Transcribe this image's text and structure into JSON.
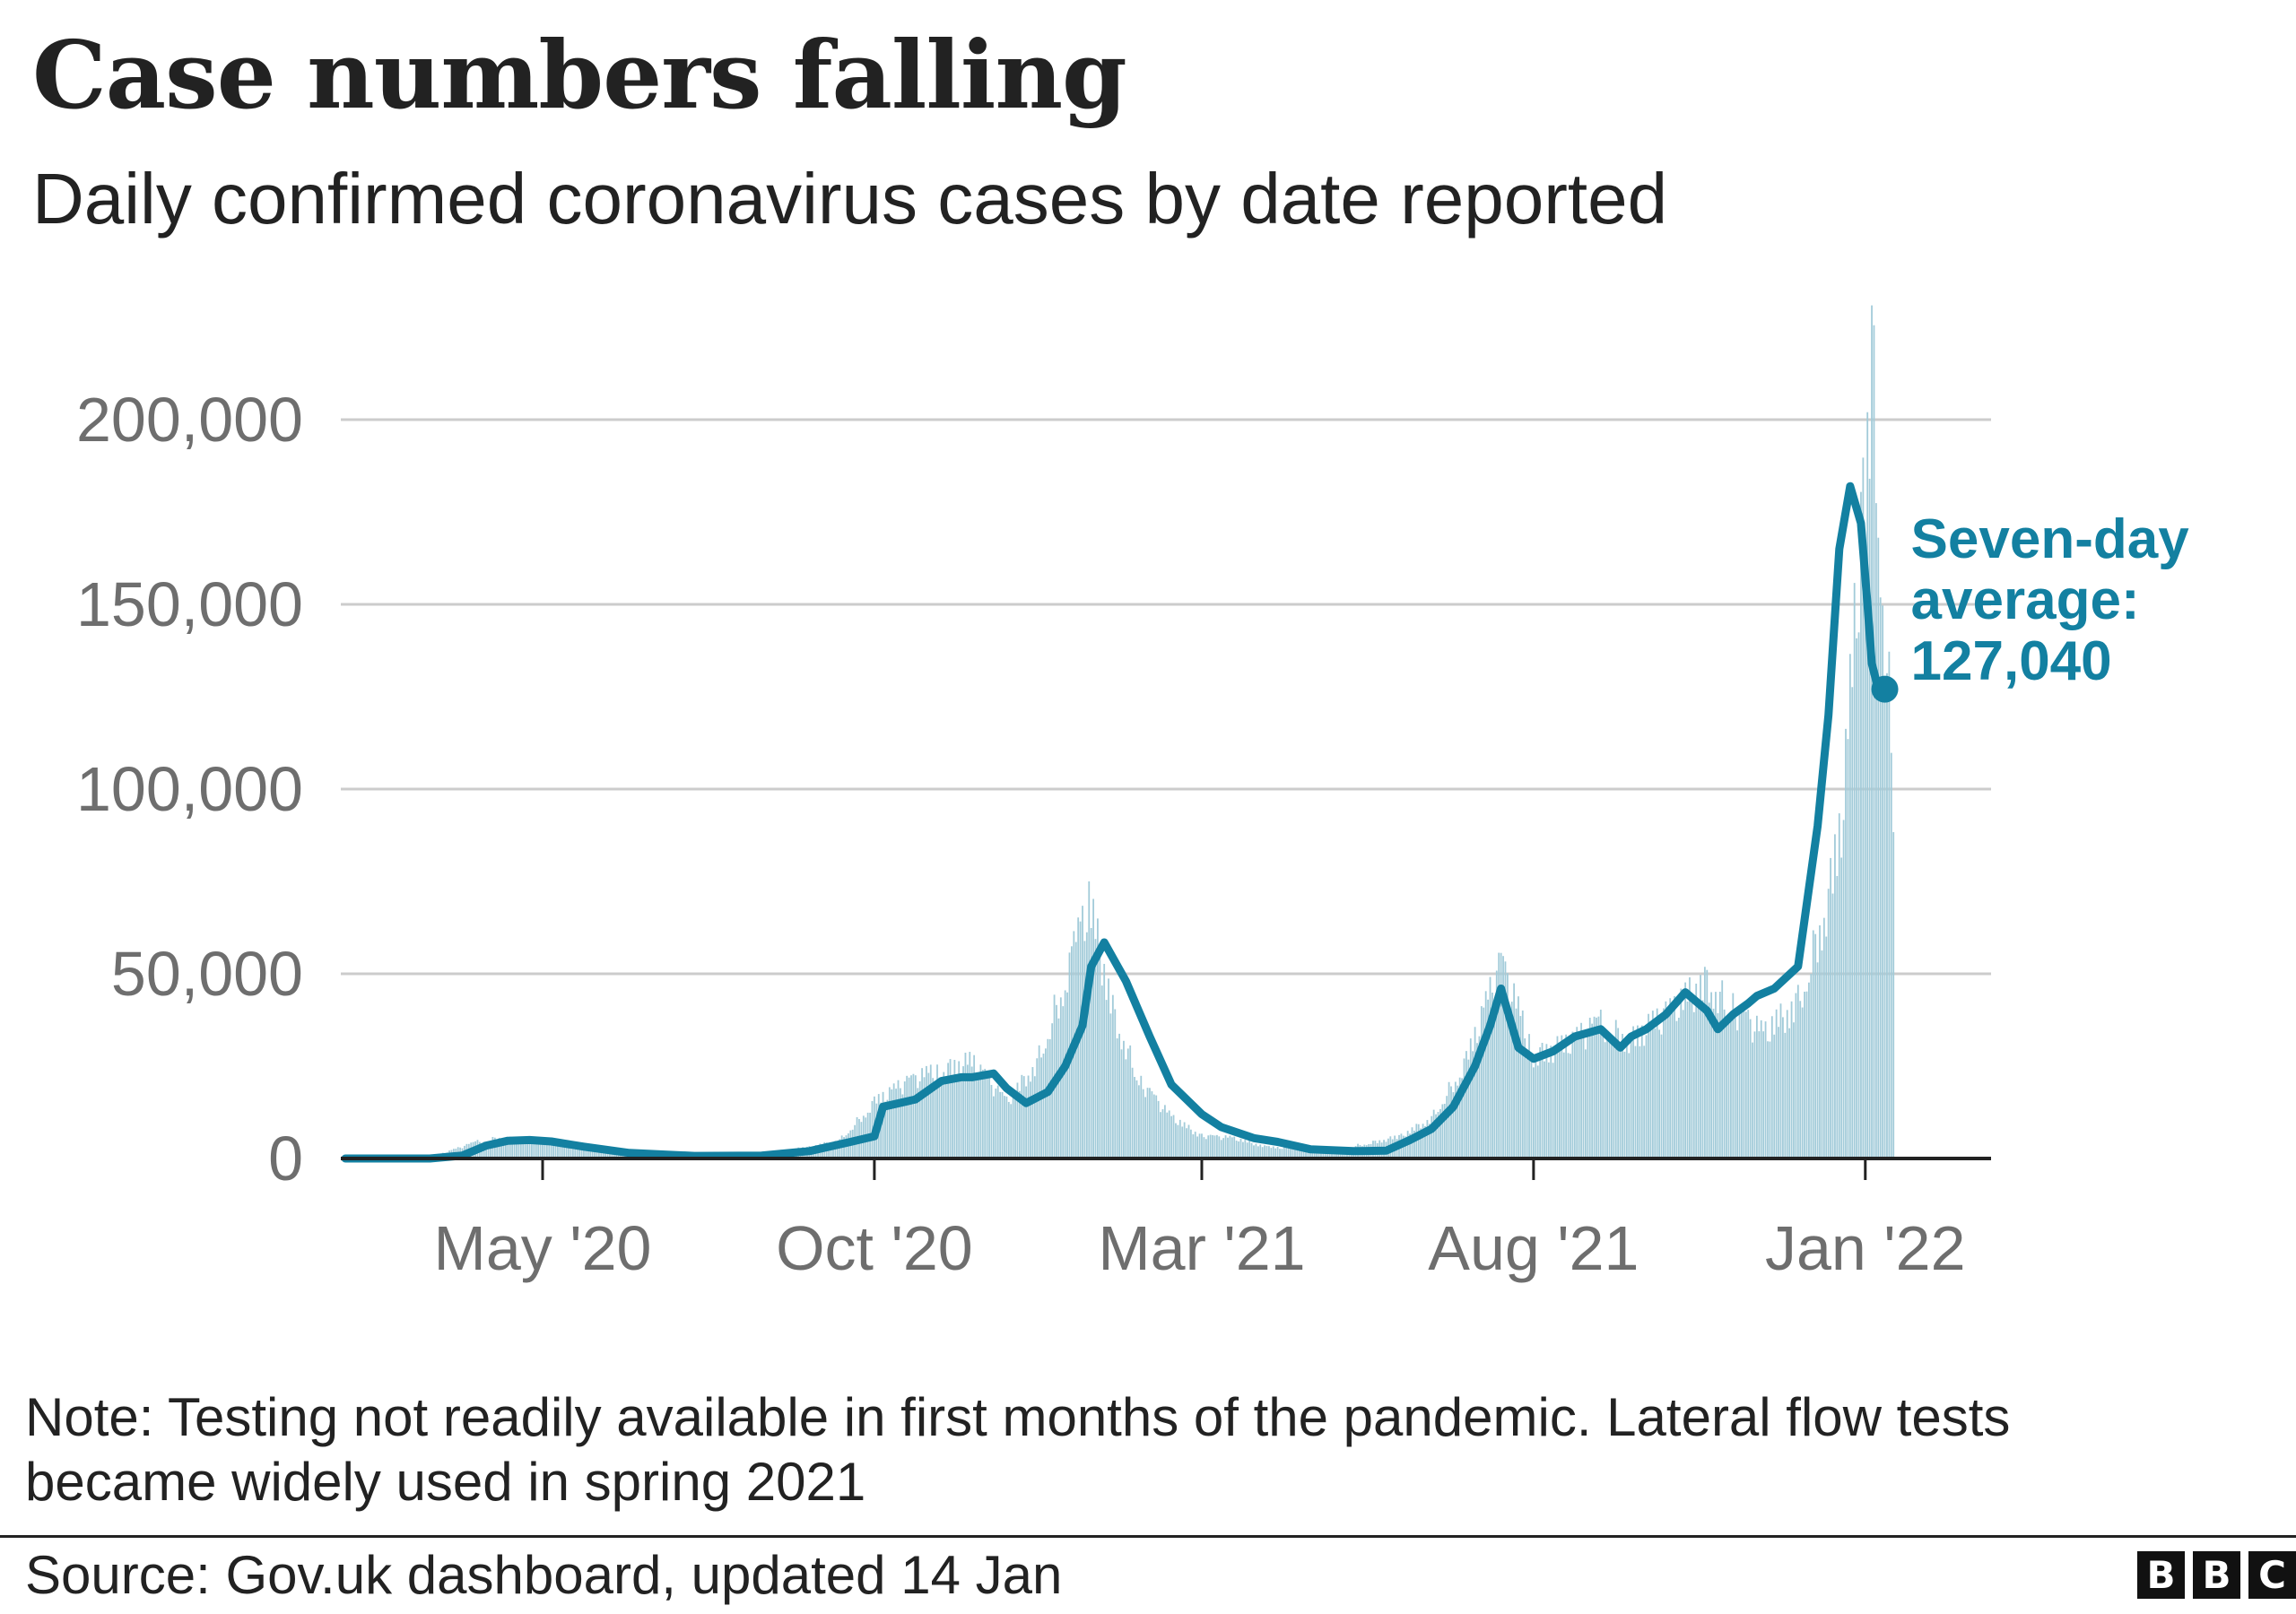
{
  "title": "Case numbers falling",
  "subtitle": "Daily confirmed coronavirus cases by date reported",
  "note": "Note: Testing not readily available in first months of the pandemic. Lateral flow tests became widely used in spring 2021",
  "source": "Source: Gov.uk dashboard, updated 14 Jan",
  "logo": {
    "letters": [
      "B",
      "B",
      "C"
    ]
  },
  "chart_data": {
    "type": "area",
    "x_unit": "date",
    "xlim": [
      "2020-01-31",
      "2022-02-28"
    ],
    "ylim": [
      0,
      200000
    ],
    "yticks": [
      0,
      50000,
      100000,
      150000,
      200000
    ],
    "ytick_labels": [
      "0",
      "50,000",
      "100,000",
      "150,000",
      "200,000"
    ],
    "xticks": [
      "2020-05-01",
      "2020-10-01",
      "2021-03-01",
      "2021-08-01",
      "2022-01-01"
    ],
    "xtick_labels": [
      "May '20",
      "Oct '20",
      "Mar '21",
      "Aug '21",
      "Jan '22"
    ],
    "grid": true,
    "colors": {
      "line": "#1380a1",
      "bars": "#a2cbd9",
      "grid": "#cccccc",
      "axis": "#222222",
      "tick_text": "#6e6e6e"
    },
    "series": [
      {
        "kind": "bars",
        "description": "Daily confirmed cases (estimated from chart)",
        "x": [
          "2020-02-01",
          "2020-03-01",
          "2020-03-15",
          "2020-04-01",
          "2020-04-10",
          "2020-05-01",
          "2020-05-15",
          "2020-06-01",
          "2020-07-01",
          "2020-08-01",
          "2020-09-01",
          "2020-09-15",
          "2020-10-01",
          "2020-10-15",
          "2020-11-01",
          "2020-11-15",
          "2020-12-01",
          "2020-12-15",
          "2021-01-01",
          "2021-01-08",
          "2021-01-20",
          "2021-02-01",
          "2021-02-15",
          "2021-03-01",
          "2021-03-15",
          "2021-04-01",
          "2021-05-01",
          "2021-06-01",
          "2021-06-15",
          "2021-07-01",
          "2021-07-17",
          "2021-08-01",
          "2021-08-15",
          "2021-09-01",
          "2021-09-15",
          "2021-10-01",
          "2021-10-20",
          "2021-11-01",
          "2021-11-15",
          "2021-12-01",
          "2021-12-15",
          "2021-12-22",
          "2022-01-01",
          "2022-01-04",
          "2022-01-10",
          "2022-01-14"
        ],
        "values": [
          0,
          200,
          1200,
          4500,
          5500,
          5000,
          3500,
          1500,
          800,
          1000,
          3000,
          5000,
          15000,
          20000,
          24000,
          26000,
          15000,
          26000,
          55000,
          68000,
          38000,
          20000,
          11000,
          6000,
          5500,
          3000,
          2200,
          6000,
          11000,
          26000,
          52000,
          28000,
          30000,
          36000,
          32000,
          38000,
          48000,
          40000,
          33000,
          42000,
          70000,
          95000,
          185000,
          218000,
          145000,
          100000
        ]
      },
      {
        "kind": "line",
        "name": "Seven-day average",
        "x": [
          "2020-01-31",
          "2020-03-10",
          "2020-03-25",
          "2020-04-05",
          "2020-04-15",
          "2020-04-25",
          "2020-05-05",
          "2020-05-20",
          "2020-06-10",
          "2020-07-10",
          "2020-08-10",
          "2020-09-01",
          "2020-09-20",
          "2020-10-01",
          "2020-10-05",
          "2020-10-20",
          "2020-11-01",
          "2020-11-10",
          "2020-11-15",
          "2020-11-25",
          "2020-12-01",
          "2020-12-10",
          "2020-12-20",
          "2020-12-28",
          "2021-01-05",
          "2021-01-09",
          "2021-01-15",
          "2021-01-25",
          "2021-02-05",
          "2021-02-15",
          "2021-03-01",
          "2021-03-10",
          "2021-03-25",
          "2021-04-05",
          "2021-04-20",
          "2021-05-10",
          "2021-05-25",
          "2021-06-05",
          "2021-06-15",
          "2021-06-25",
          "2021-07-05",
          "2021-07-12",
          "2021-07-17",
          "2021-07-25",
          "2021-08-01",
          "2021-08-10",
          "2021-08-20",
          "2021-09-01",
          "2021-09-10",
          "2021-09-15",
          "2021-09-22",
          "2021-10-01",
          "2021-10-10",
          "2021-10-20",
          "2021-10-25",
          "2021-11-01",
          "2021-11-08",
          "2021-11-12",
          "2021-11-20",
          "2021-12-01",
          "2021-12-10",
          "2021-12-15",
          "2021-12-20",
          "2021-12-25",
          "2021-12-30",
          "2022-01-02",
          "2022-01-04",
          "2022-01-07",
          "2022-01-10"
        ],
        "values": [
          0,
          0,
          800,
          3500,
          4800,
          5000,
          4600,
          3200,
          1500,
          700,
          800,
          2000,
          4500,
          6000,
          14000,
          16000,
          21000,
          22000,
          22000,
          23000,
          19000,
          15000,
          18000,
          25000,
          36000,
          52000,
          58500,
          48000,
          33000,
          20000,
          12000,
          8500,
          5500,
          4500,
          2500,
          2000,
          2100,
          5000,
          8000,
          14000,
          25000,
          36000,
          46000,
          30000,
          27000,
          29000,
          33000,
          35000,
          30000,
          33000,
          35000,
          39000,
          45000,
          40000,
          35000,
          39000,
          42000,
          44000,
          46000,
          52000,
          90000,
          120000,
          165000,
          182000,
          172000,
          150000,
          134000,
          127040,
          127040
        ]
      }
    ],
    "annotation": {
      "line1": "Seven-day",
      "line2": "average:",
      "value": "127,040",
      "x": "2022-01-10",
      "y": 127040
    }
  }
}
